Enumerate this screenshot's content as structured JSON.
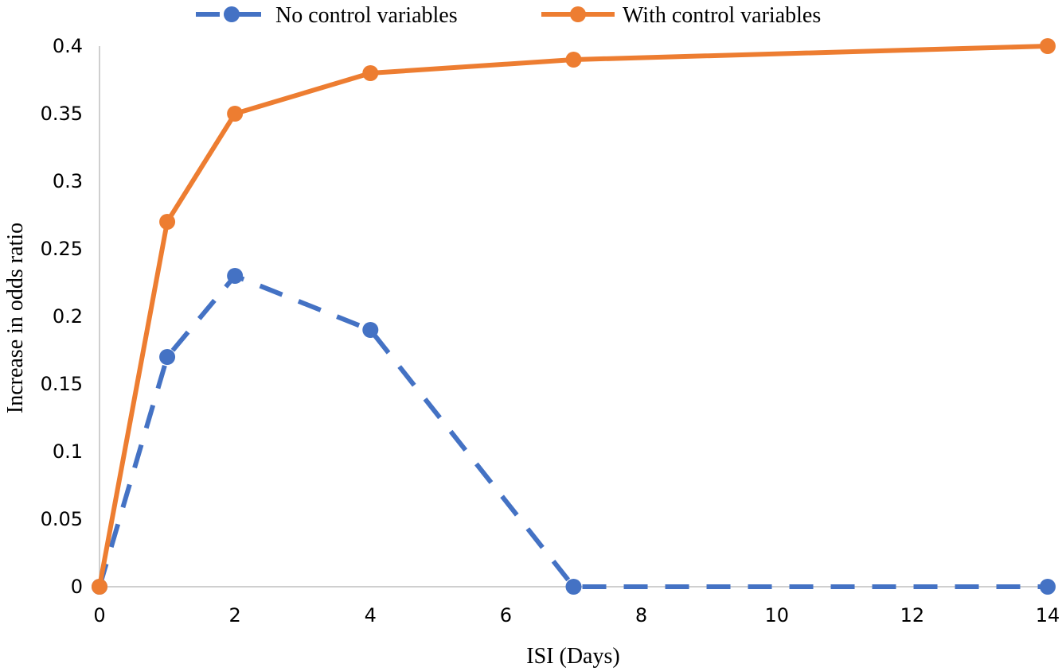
{
  "chart_data": {
    "type": "line",
    "xlabel": "ISI (Days)",
    "ylabel": "Increase in odds ratio",
    "xlim": [
      0,
      14
    ],
    "ylim": [
      0,
      0.4
    ],
    "xticks": [
      "0",
      "2",
      "4",
      "6",
      "8",
      "10",
      "12",
      "14"
    ],
    "yticks": [
      "0",
      "0.05",
      "0.1",
      "0.15",
      "0.2",
      "0.25",
      "0.3",
      "0.35",
      "0.4"
    ],
    "grid": false,
    "legend_position": "top",
    "series": [
      {
        "name": "No control variables",
        "color": "#4472C4",
        "style": "dashed",
        "x": [
          0,
          1,
          2,
          4,
          7,
          14
        ],
        "y": [
          0,
          0.17,
          0.23,
          0.19,
          0,
          0
        ]
      },
      {
        "name": "With control variables",
        "color": "#ED7D31",
        "style": "solid",
        "x": [
          0,
          1,
          2,
          4,
          7,
          14
        ],
        "y": [
          0,
          0.27,
          0.35,
          0.38,
          0.39,
          0.4
        ]
      }
    ]
  }
}
